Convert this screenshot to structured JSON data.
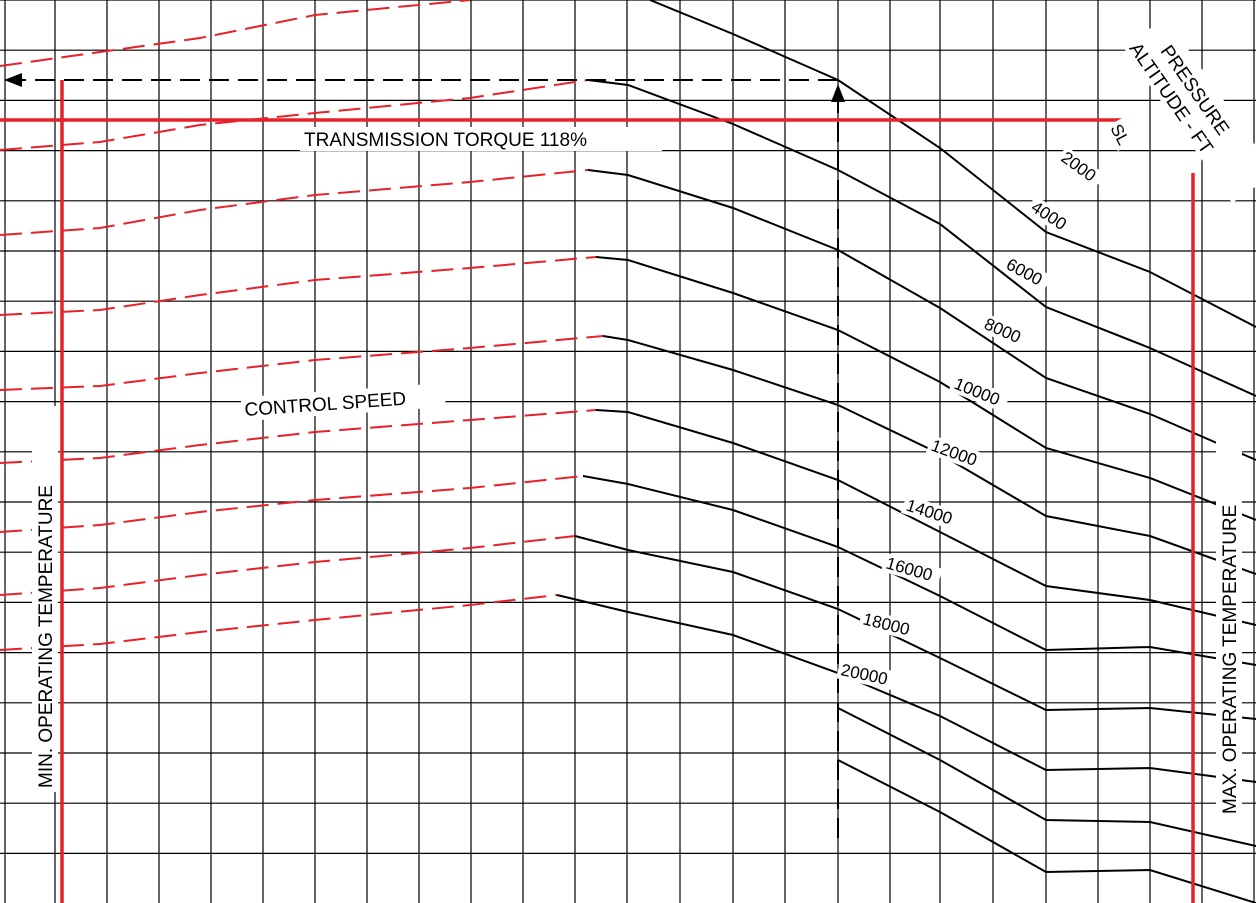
{
  "chart_data": {
    "type": "line",
    "grid": true,
    "colors": {
      "grid": "#000000",
      "altitude_lines": "#000000",
      "limits": "#e8202a",
      "control_speed": "#e8202a",
      "example": "#000000"
    },
    "labels": {
      "transmission_torque": "TRANSMISSION TORQUE 118%",
      "control_speed": "CONTROL SPEED",
      "pressure_altitude_line1": "PRESSURE",
      "pressure_altitude_line2": "ALTITUDE - FT",
      "min_temp": "MIN. OPERATING TEMPERATURE",
      "max_temp": "MAX. OPERATING TEMPERATURE"
    },
    "series": [
      {
        "name": "SL",
        "points": [
          [
            650,
            0
          ],
          [
            733,
            34
          ],
          [
            838,
            80
          ],
          [
            940,
            148
          ],
          [
            1046,
            232
          ],
          [
            1150,
            272
          ],
          [
            1256,
            327
          ]
        ]
      },
      {
        "name": "2000",
        "points": [
          [
            588,
            80
          ],
          [
            628,
            85
          ],
          [
            733,
            124
          ],
          [
            838,
            170
          ],
          [
            940,
            224
          ],
          [
            1046,
            307
          ],
          [
            1150,
            348
          ],
          [
            1256,
            396
          ]
        ]
      },
      {
        "name": "4000",
        "points": [
          [
            588,
            170
          ],
          [
            628,
            175
          ],
          [
            733,
            208
          ],
          [
            838,
            250
          ],
          [
            940,
            308
          ],
          [
            1046,
            378
          ],
          [
            1150,
            414
          ],
          [
            1256,
            460
          ]
        ]
      },
      {
        "name": "6000",
        "points": [
          [
            596,
            257
          ],
          [
            628,
            260
          ],
          [
            733,
            293
          ],
          [
            838,
            330
          ],
          [
            940,
            382
          ],
          [
            1046,
            448
          ],
          [
            1150,
            478
          ],
          [
            1256,
            520
          ]
        ]
      },
      {
        "name": "8000",
        "points": [
          [
            603,
            336
          ],
          [
            628,
            340
          ],
          [
            733,
            370
          ],
          [
            838,
            405
          ],
          [
            940,
            454
          ],
          [
            1046,
            516
          ],
          [
            1150,
            536
          ],
          [
            1256,
            574
          ]
        ]
      },
      {
        "name": "10000",
        "points": [
          [
            596,
            410
          ],
          [
            628,
            412
          ],
          [
            733,
            443
          ],
          [
            838,
            480
          ],
          [
            940,
            532
          ],
          [
            1046,
            586
          ],
          [
            1150,
            600
          ],
          [
            1256,
            625
          ]
        ]
      },
      {
        "name": "12000",
        "points": [
          [
            583,
            476
          ],
          [
            628,
            484
          ],
          [
            733,
            510
          ],
          [
            838,
            547
          ],
          [
            940,
            596
          ],
          [
            1046,
            650
          ],
          [
            1150,
            647
          ],
          [
            1256,
            665
          ]
        ]
      },
      {
        "name": "14000",
        "points": [
          [
            575,
            536
          ],
          [
            628,
            550
          ],
          [
            733,
            572
          ],
          [
            838,
            609
          ],
          [
            940,
            658
          ],
          [
            1046,
            710
          ],
          [
            1150,
            708
          ],
          [
            1256,
            719
          ]
        ]
      },
      {
        "name": "16000",
        "points": [
          [
            557,
            595
          ],
          [
            628,
            612
          ],
          [
            733,
            635
          ],
          [
            838,
            673
          ],
          [
            940,
            716
          ],
          [
            1046,
            770
          ],
          [
            1150,
            768
          ],
          [
            1256,
            782
          ]
        ]
      },
      {
        "name": "18000",
        "points": [
          [
            838,
            708
          ],
          [
            940,
            760
          ],
          [
            1046,
            820
          ],
          [
            1150,
            822
          ],
          [
            1256,
            846
          ]
        ]
      },
      {
        "name": "20000",
        "points": [
          [
            838,
            760
          ],
          [
            940,
            812
          ],
          [
            1046,
            872
          ],
          [
            1150,
            870
          ],
          [
            1256,
            903
          ]
        ]
      }
    ],
    "altitude_labels": [
      "SL",
      "2000",
      "4000",
      "6000",
      "8000",
      "10000",
      "12000",
      "14000",
      "16000",
      "18000",
      "20000"
    ]
  }
}
